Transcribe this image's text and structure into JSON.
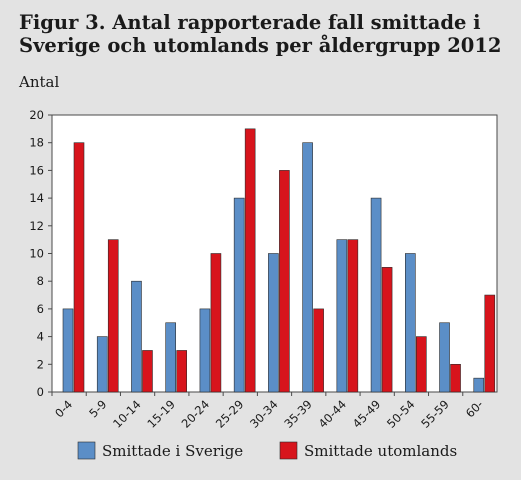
{
  "title": "Figur 3. Antal rapporterade fall smittade i Sverige och utomlands per åldergrupp 2012",
  "chart_data": {
    "type": "bar",
    "ylabel": "Antal",
    "xlabel": "",
    "ylim": [
      0,
      20
    ],
    "yticks": [
      0,
      2,
      4,
      6,
      8,
      10,
      12,
      14,
      16,
      18,
      20
    ],
    "grid": false,
    "legend_position": "bottom",
    "categories": [
      "0-4",
      "5-9",
      "10-14",
      "15-19",
      "20-24",
      "25-29",
      "30-34",
      "35-39",
      "40-44",
      "45-49",
      "50-54",
      "55-59",
      "60-"
    ],
    "series": [
      {
        "name": "Smittade i Sverige",
        "color": "#5b8ec7",
        "values": [
          6,
          4,
          8,
          5,
          6,
          14,
          10,
          18,
          11,
          14,
          10,
          5,
          1
        ]
      },
      {
        "name": "Smittade utomlands",
        "color": "#d7141c",
        "values": [
          18,
          11,
          3,
          3,
          10,
          19,
          16,
          6,
          11,
          9,
          4,
          2,
          7
        ]
      }
    ]
  }
}
